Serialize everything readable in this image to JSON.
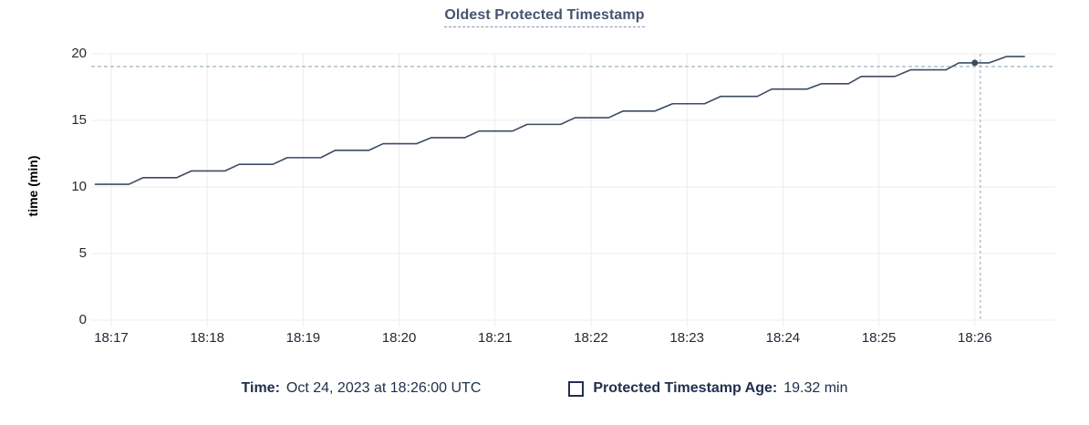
{
  "title": "Oldest Protected Timestamp",
  "legend": {
    "time_label": "Time:",
    "time_value": "Oct 24, 2023 at 18:26:00 UTC",
    "series_label": "Protected Timestamp Age:",
    "series_value": "19.32 min"
  },
  "colors": {
    "line": "#3c4a63",
    "grid": "#ececec",
    "crosshair": "#a6bac7",
    "title_text": "#45546e",
    "tick_text": "#242a35",
    "legend_text": "#20304d"
  },
  "chart_data": {
    "type": "line",
    "title": "Oldest Protected Timestamp",
    "xlabel": "",
    "ylabel": "time (min)",
    "ylim": [
      0,
      20
    ],
    "yticks": [
      0,
      5,
      10,
      15,
      20
    ],
    "xticks": [
      "18:17",
      "18:18",
      "18:19",
      "18:20",
      "18:21",
      "18:22",
      "18:23",
      "18:24",
      "18:25",
      "18:26"
    ],
    "x_range": [
      "18:16:47",
      "18:26:50"
    ],
    "grid": true,
    "legend_position": "bottom",
    "series": [
      {
        "name": "Protected Timestamp Age",
        "unit": "min",
        "points": [
          [
            "18:16:50",
            10.2
          ],
          [
            "18:17:11",
            10.2
          ],
          [
            "18:17:20",
            10.7
          ],
          [
            "18:17:41",
            10.7
          ],
          [
            "18:17:50",
            11.2
          ],
          [
            "18:18:11",
            11.2
          ],
          [
            "18:18:20",
            11.7
          ],
          [
            "18:18:41",
            11.7
          ],
          [
            "18:18:50",
            12.2
          ],
          [
            "18:19:11",
            12.2
          ],
          [
            "18:19:20",
            12.75
          ],
          [
            "18:19:41",
            12.75
          ],
          [
            "18:19:50",
            13.25
          ],
          [
            "18:20:11",
            13.25
          ],
          [
            "18:20:20",
            13.7
          ],
          [
            "18:20:41",
            13.7
          ],
          [
            "18:20:50",
            14.2
          ],
          [
            "18:21:11",
            14.2
          ],
          [
            "18:21:20",
            14.7
          ],
          [
            "18:21:41",
            14.7
          ],
          [
            "18:21:50",
            15.2
          ],
          [
            "18:22:11",
            15.2
          ],
          [
            "18:22:20",
            15.7
          ],
          [
            "18:22:40",
            15.7
          ],
          [
            "18:22:51",
            16.25
          ],
          [
            "18:23:11",
            16.25
          ],
          [
            "18:23:21",
            16.8
          ],
          [
            "18:23:44",
            16.8
          ],
          [
            "18:23:53",
            17.35
          ],
          [
            "18:24:15",
            17.35
          ],
          [
            "18:24:24",
            17.75
          ],
          [
            "18:24:41",
            17.75
          ],
          [
            "18:24:49",
            18.3
          ],
          [
            "18:25:10",
            18.3
          ],
          [
            "18:25:20",
            18.8
          ],
          [
            "18:25:42",
            18.8
          ],
          [
            "18:25:50",
            19.32
          ],
          [
            "18:26:09",
            19.32
          ],
          [
            "18:26:20",
            19.8
          ],
          [
            "18:26:31",
            19.8
          ]
        ]
      }
    ],
    "crosshair": {
      "time": "18:26:00",
      "value": 19.32
    }
  }
}
